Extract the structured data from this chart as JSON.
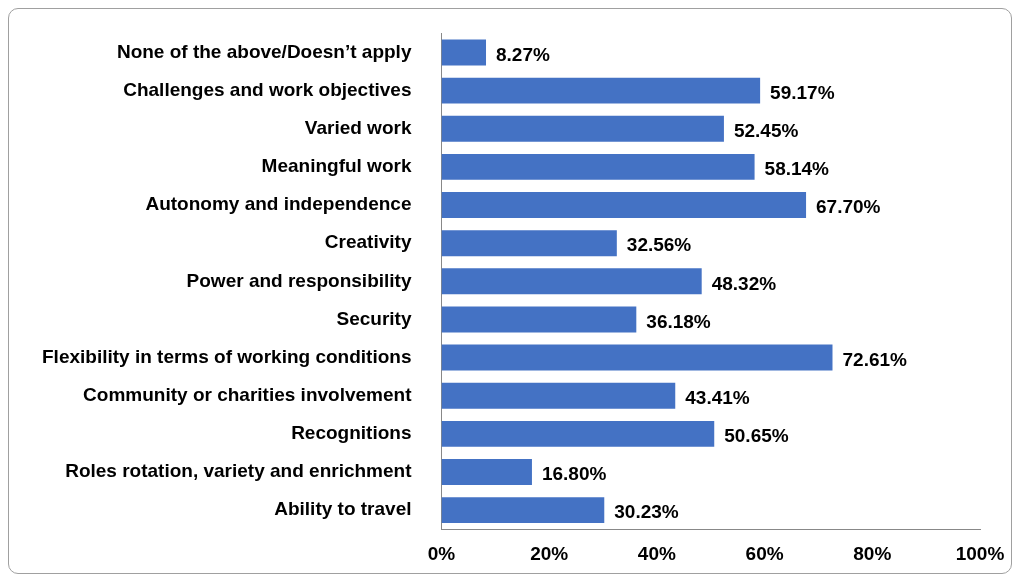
{
  "chart_data": {
    "type": "bar",
    "orientation": "horizontal",
    "categories": [
      "None of the above/Doesn’t apply",
      "Challenges and work objectives",
      "Varied work",
      "Meaningful work",
      "Autonomy and independence",
      "Creativity",
      "Power and responsibility",
      "Security",
      "Flexibility in terms of working conditions",
      "Community or charities involvement",
      "Recognitions",
      "Roles rotation, variety and enrichment",
      "Ability to travel"
    ],
    "values": [
      8.27,
      59.17,
      52.45,
      58.14,
      67.7,
      32.56,
      48.32,
      36.18,
      72.61,
      43.41,
      50.65,
      16.8,
      30.23
    ],
    "value_labels": [
      "8.27%",
      "59.17%",
      "52.45%",
      "58.14%",
      "67.70%",
      "32.56%",
      "48.32%",
      "36.18%",
      "72.61%",
      "43.41%",
      "50.65%",
      "16.80%",
      "30.23%"
    ],
    "color": "#4472c4",
    "xlim": [
      0,
      100
    ],
    "xticks": [
      {
        "value": 0,
        "label": "0%"
      },
      {
        "value": 20,
        "label": "20%"
      },
      {
        "value": 40,
        "label": "40%"
      },
      {
        "value": 60,
        "label": "60%"
      },
      {
        "value": 80,
        "label": "80%"
      },
      {
        "value": 100,
        "label": "100%"
      }
    ],
    "grid": false,
    "legend": false
  }
}
